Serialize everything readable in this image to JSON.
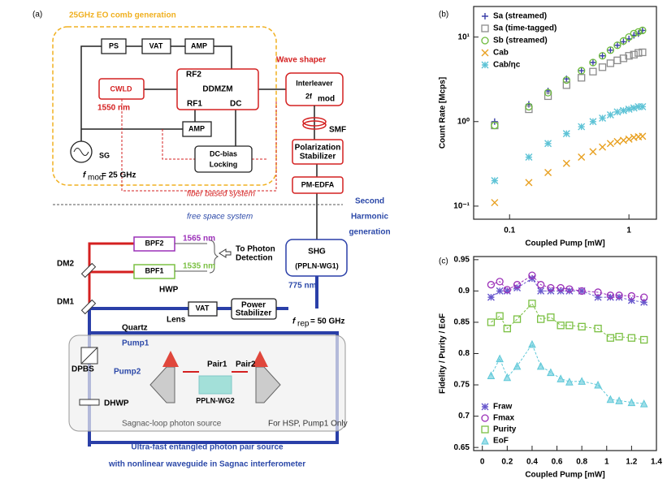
{
  "diagram": {
    "panel_label": "(a)",
    "title": "25GHz EO comb generation",
    "boxes": [
      "PS",
      "VAT",
      "AMP",
      "CWLD",
      "DDMZM",
      "AMP",
      "DC-bias",
      "Locking",
      "SG",
      "Interleaver",
      "2f",
      "mod",
      "Polarization",
      "Stabilizer",
      "PM-EDFA",
      "SHG",
      "(PPLN-WG1)",
      "BPF2",
      "BPF1",
      "VAT",
      "Power",
      "Stabilizer",
      "DPBS",
      "DHWP",
      "PPLN-WG2"
    ],
    "labels": [
      "RF2",
      "RF1",
      "DC",
      "1550 nm",
      "f",
      "mod",
      "= 25 GHz",
      "fiber based system",
      "Wave shaper",
      "SMF",
      "free space system",
      "Second",
      "Harmonic",
      "generation",
      "1565 nm",
      "1535 nm",
      "To Photon",
      "Detection",
      "DM2",
      "DM1",
      "HWP",
      "Quartz",
      "Lens",
      "775 nm",
      "f",
      "rep",
      "= 50 GHz",
      "Pump1",
      "Pump2",
      "Pair1",
      "Pair2",
      "Sagnac-loop photon source",
      "For HSP, Pump1 Only"
    ],
    "caption": [
      "Ultra-fast entangled photon pair source",
      "with nonlinear waveguide in Sagnac interferometer"
    ]
  },
  "chart_data": [
    {
      "type": "scatter",
      "panel_label": "(b)",
      "xlabel": "Coupled Pump [mW]",
      "ylabel": "Count Rate [Mcps]",
      "xscale": "log",
      "yscale": "log",
      "xlim": [
        0.05,
        1.7
      ],
      "ylim": [
        0.07,
        23
      ],
      "xticks": [
        0.1,
        1
      ],
      "yticks": [
        {
          "value": 0.1,
          "label": "10⁻¹"
        },
        {
          "value": 1,
          "label": "10⁰"
        },
        {
          "value": 10,
          "label": "10¹"
        }
      ],
      "legend": "upper left",
      "x": [
        0.075,
        0.145,
        0.21,
        0.3,
        0.4,
        0.5,
        0.6,
        0.7,
        0.8,
        0.9,
        1.0,
        1.1,
        1.2,
        1.3
      ],
      "series": [
        {
          "name": "Sa (streamed)",
          "color": "#3b3fa8",
          "marker": "plus",
          "values": [
            1.0,
            1.6,
            2.3,
            3.2,
            4.0,
            5.0,
            6.0,
            7.0,
            8.0,
            8.8,
            9.5,
            10.5,
            11,
            12
          ]
        },
        {
          "name": "Sa (time-tagged)",
          "color": "#8c8c8c",
          "marker": "square",
          "values": [
            0.9,
            1.4,
            2.0,
            2.7,
            3.3,
            3.9,
            4.4,
            4.9,
            5.3,
            5.6,
            6.0,
            6.2,
            6.5,
            6.6
          ]
        },
        {
          "name": "Sb (streamed)",
          "color": "#6dbb3c",
          "marker": "circle",
          "values": [
            0.9,
            1.5,
            2.2,
            3.1,
            4.0,
            5.0,
            6.0,
            7.0,
            8.0,
            9.0,
            10,
            11,
            11.5,
            12
          ]
        },
        {
          "name": "Cab",
          "color": "#e8a020",
          "marker": "x",
          "values": [
            0.11,
            0.19,
            0.25,
            0.32,
            0.38,
            0.44,
            0.5,
            0.55,
            0.58,
            0.6,
            0.62,
            0.65,
            0.66,
            0.67
          ]
        },
        {
          "name": "Cab/ηc",
          "color": "#5ec3d6",
          "marker": "asterisk",
          "values": [
            0.2,
            0.38,
            0.55,
            0.72,
            0.87,
            1.0,
            1.1,
            1.2,
            1.3,
            1.35,
            1.4,
            1.45,
            1.5,
            1.5
          ]
        }
      ]
    },
    {
      "type": "line",
      "panel_label": "(c)",
      "xlabel": "Coupled Pump [mW]",
      "ylabel": "Fidelity  /  Purity  /  EoF",
      "xlim": [
        -0.07,
        1.4
      ],
      "ylim": [
        0.645,
        0.955
      ],
      "xticks": [
        0,
        0.2,
        0.4,
        0.6,
        0.8,
        1,
        1.2,
        1.4
      ],
      "yticks": [
        0.65,
        0.7,
        0.75,
        0.8,
        0.85,
        0.9,
        0.95
      ],
      "legend": "lower left",
      "x": [
        0.07,
        0.14,
        0.2,
        0.28,
        0.4,
        0.47,
        0.55,
        0.63,
        0.7,
        0.8,
        0.93,
        1.03,
        1.1,
        1.2,
        1.3
      ],
      "series": [
        {
          "name": "Fraw",
          "color": "#6a5acd",
          "marker": "asterisk",
          "values": [
            0.89,
            0.9,
            0.9,
            0.905,
            0.92,
            0.9,
            0.9,
            0.9,
            0.9,
            0.9,
            0.89,
            0.89,
            0.89,
            0.885,
            0.882
          ]
        },
        {
          "name": "Fmax",
          "color": "#9b30b8",
          "marker": "circle",
          "values": [
            0.91,
            0.915,
            0.902,
            0.91,
            0.925,
            0.91,
            0.905,
            0.905,
            0.903,
            0.9,
            0.898,
            0.893,
            0.893,
            0.892,
            0.89
          ]
        },
        {
          "name": "Purity",
          "color": "#7bc043",
          "marker": "square",
          "values": [
            0.85,
            0.86,
            0.84,
            0.855,
            0.88,
            0.855,
            0.858,
            0.845,
            0.845,
            0.843,
            0.84,
            0.825,
            0.827,
            0.825,
            0.822
          ]
        },
        {
          "name": "EoF",
          "color": "#5ec8d8",
          "marker": "triangle",
          "values": [
            0.765,
            0.792,
            0.762,
            0.78,
            0.815,
            0.78,
            0.77,
            0.76,
            0.755,
            0.756,
            0.75,
            0.727,
            0.725,
            0.722,
            0.72
          ]
        }
      ]
    }
  ]
}
